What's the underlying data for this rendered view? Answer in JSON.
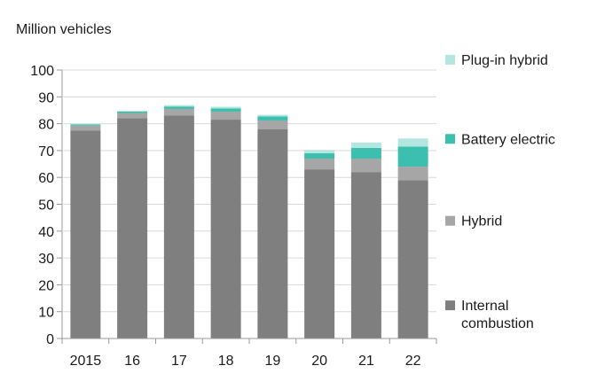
{
  "chart_data": {
    "type": "bar",
    "stacked": true,
    "ylabel": "Million vehicles",
    "xlabel": "",
    "ylim": [
      0,
      100
    ],
    "yticks": [
      0,
      10,
      20,
      30,
      40,
      50,
      60,
      70,
      80,
      90,
      100
    ],
    "categories": [
      "2015",
      "16",
      "17",
      "18",
      "19",
      "20",
      "21",
      "22"
    ],
    "series": [
      {
        "name": "Internal combustion",
        "legend_lines": [
          "Internal",
          "combustion"
        ],
        "color": "#7f7f7f",
        "values": [
          77.5,
          82,
          83,
          81.5,
          78,
          63,
          62,
          59
        ]
      },
      {
        "name": "Hybrid",
        "legend_lines": [
          "Hybrid"
        ],
        "color": "#a6a6a6",
        "values": [
          1.8,
          2,
          2.5,
          3,
          3.2,
          4,
          5,
          5
        ]
      },
      {
        "name": "Battery electric",
        "legend_lines": [
          "Battery electric"
        ],
        "color": "#3cbfae",
        "values": [
          0.4,
          0.5,
          0.9,
          1.2,
          1.5,
          2,
          4,
          7.5
        ]
      },
      {
        "name": "Plug-in hybrid",
        "legend_lines": [
          "Plug-in hybrid"
        ],
        "color": "#b3e6df",
        "values": [
          0.3,
          0.3,
          0.5,
          0.6,
          0.6,
          1.2,
          2,
          3
        ]
      }
    ],
    "legend_position": "right",
    "legend_order": [
      "Plug-in hybrid",
      "Battery electric",
      "Hybrid",
      "Internal combustion"
    ],
    "legend_anchor_values": [
      104,
      74.5,
      44,
      12.5
    ]
  }
}
